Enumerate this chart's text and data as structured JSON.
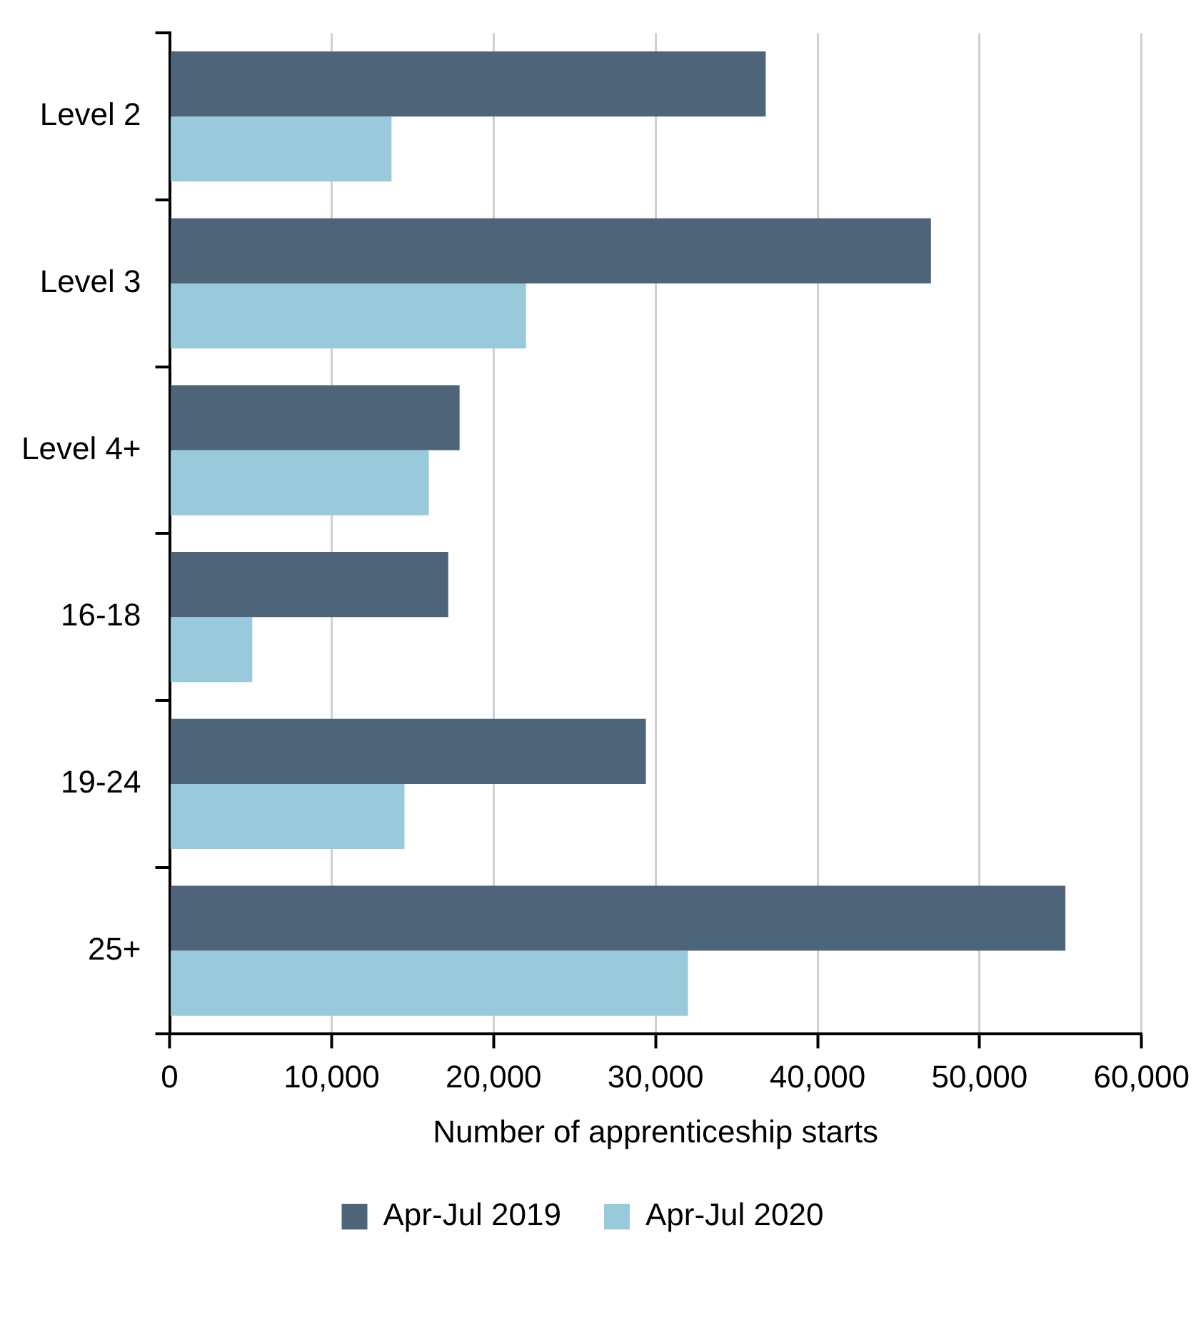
{
  "chart_data": {
    "type": "bar",
    "orientation": "horizontal",
    "xlabel": "Number of apprenticeship starts",
    "categories": [
      "Level 2",
      "Level 3",
      "Level 4+",
      "16-18",
      "19-24",
      "25+"
    ],
    "series": [
      {
        "name": "Apr-Jul 2019",
        "color": "#4e6478",
        "values": [
          36800,
          47000,
          17900,
          17200,
          29400,
          55300
        ]
      },
      {
        "name": "Apr-Jul 2020",
        "color": "#98cadb",
        "values": [
          13700,
          22000,
          16000,
          5100,
          14500,
          32000
        ]
      }
    ],
    "xlim": [
      0,
      60000
    ],
    "xticks": [
      0,
      {
        "value": 10000,
        "label": "10,000"
      },
      {
        "value": 20000,
        "label": "20,000"
      },
      {
        "value": 30000,
        "label": "30,000"
      },
      {
        "value": 40000,
        "label": "40,000"
      },
      {
        "value": 50000,
        "label": "50,000"
      },
      {
        "value": 60000,
        "label": "60,000"
      }
    ],
    "grid": "x",
    "legend": "bottom"
  }
}
